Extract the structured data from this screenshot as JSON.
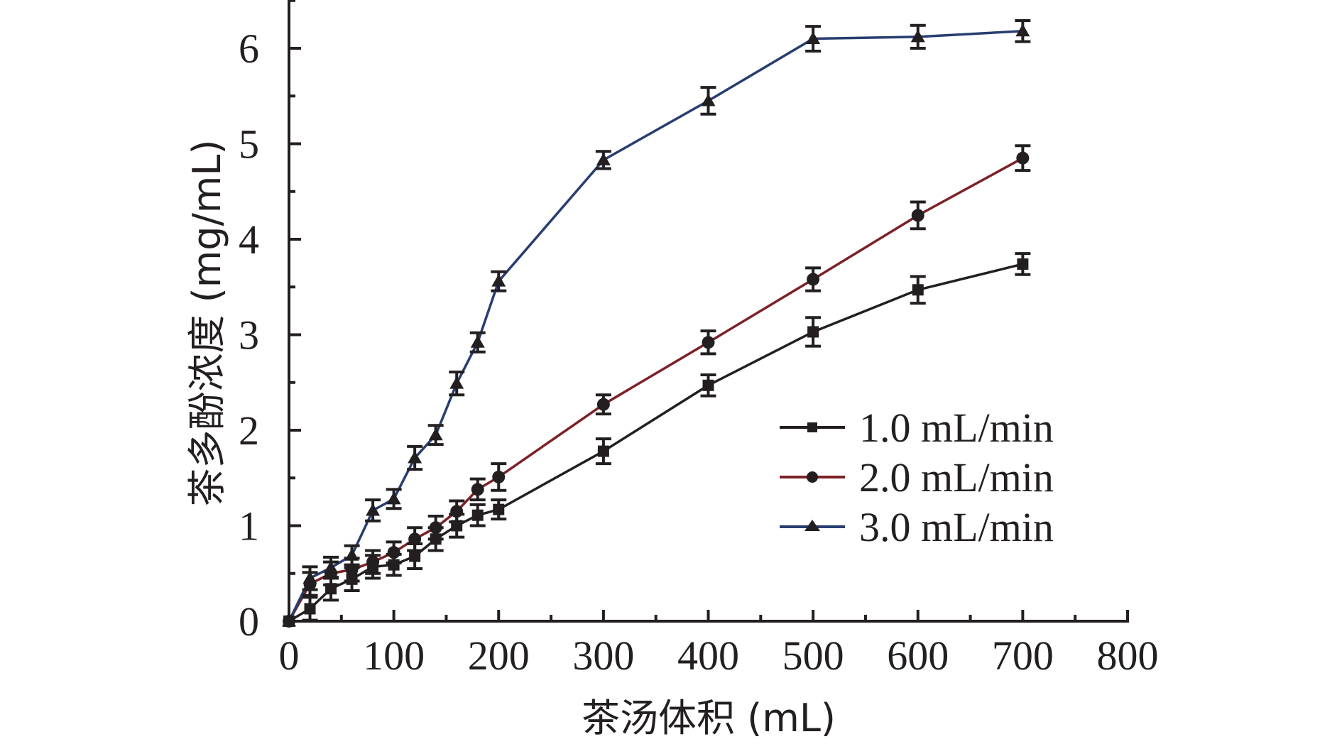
{
  "chart_data": {
    "type": "line",
    "title": "",
    "xlabel": "茶汤体积 (mL)",
    "ylabel": "茶多酚浓度 (mg/mL)",
    "xlim": [
      0,
      800
    ],
    "ylim": [
      0,
      6.5
    ],
    "xticks": [
      0,
      100,
      200,
      300,
      400,
      500,
      600,
      700,
      800
    ],
    "yticks": [
      0,
      1,
      2,
      3,
      4,
      5,
      6
    ],
    "xtick_labels": [
      "0",
      "100",
      "200",
      "300",
      "400",
      "500",
      "600",
      "700",
      "800"
    ],
    "ytick_labels": [
      "0",
      "1",
      "2",
      "3",
      "4",
      "5",
      "6"
    ],
    "grid": false,
    "legend_position": "lower-right",
    "x": [
      0,
      20,
      40,
      60,
      80,
      100,
      120,
      140,
      160,
      180,
      200,
      300,
      400,
      500,
      600,
      700
    ],
    "series": [
      {
        "name": "1.0 mL/min",
        "color": "#231f20",
        "marker": "square",
        "values": [
          0,
          0.13,
          0.34,
          0.44,
          0.57,
          0.59,
          0.68,
          0.86,
          1.0,
          1.11,
          1.17,
          1.78,
          2.47,
          3.03,
          3.47,
          3.74
        ],
        "errors": [
          0,
          0.12,
          0.12,
          0.12,
          0.12,
          0.11,
          0.13,
          0.12,
          0.12,
          0.11,
          0.1,
          0.13,
          0.11,
          0.15,
          0.14,
          0.11
        ]
      },
      {
        "name": "2.0 mL/min",
        "color": "#7b2127",
        "marker": "circle",
        "values": [
          0,
          0.39,
          0.5,
          0.54,
          0.62,
          0.72,
          0.86,
          0.98,
          1.15,
          1.38,
          1.51,
          2.27,
          2.92,
          3.58,
          4.25,
          4.85
        ],
        "errors": [
          0,
          0.12,
          0.12,
          0.12,
          0.12,
          0.11,
          0.12,
          0.12,
          0.11,
          0.11,
          0.14,
          0.1,
          0.12,
          0.12,
          0.14,
          0.13
        ]
      },
      {
        "name": "3.0 mL/min",
        "color": "#283d70",
        "marker": "triangle",
        "values": [
          0,
          0.45,
          0.56,
          0.69,
          1.16,
          1.28,
          1.71,
          1.95,
          2.49,
          2.92,
          3.56,
          4.83,
          5.45,
          6.1,
          6.12,
          6.18
        ],
        "errors": [
          0,
          0.12,
          0.11,
          0.1,
          0.11,
          0.1,
          0.12,
          0.1,
          0.12,
          0.1,
          0.1,
          0.09,
          0.14,
          0.13,
          0.12,
          0.11
        ]
      }
    ]
  }
}
